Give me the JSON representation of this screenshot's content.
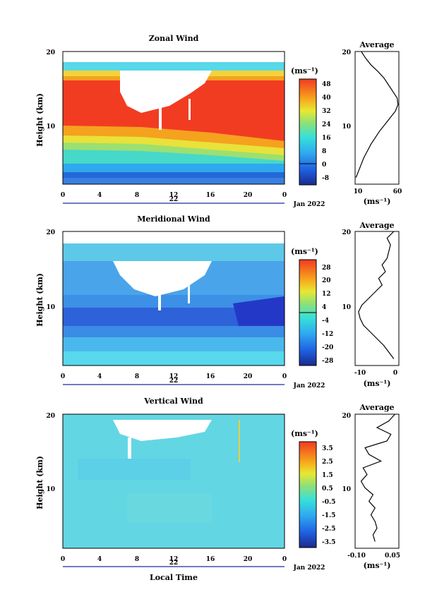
{
  "chart_data": [
    {
      "type": "heatmap",
      "title": "Zonal Wind",
      "ylabel": "Height (km)",
      "ylim": [
        0,
        20
      ],
      "y_ticks": [
        "10",
        "20"
      ],
      "xlim": [
        0,
        24
      ],
      "x_ticks": [
        "0",
        "4",
        "8",
        "12",
        "16",
        "20",
        "0"
      ],
      "date_label": "22",
      "month_label": "Jan 2022",
      "colorbar": {
        "unit": "(ms⁻¹)",
        "range": [
          -12,
          52
        ],
        "ticks": [
          "48",
          "40",
          "32",
          "24",
          "16",
          "8",
          "0",
          "-8"
        ],
        "contour_level": "0"
      },
      "profile": {
        "title": "Average",
        "xlim": [
          10,
          60
        ],
        "x_ticks": [
          "10",
          "60"
        ],
        "xlabel": "(ms⁻¹)",
        "y_ticks": [
          "10",
          "20"
        ],
        "heights": [
          1,
          2,
          3,
          4,
          5,
          6,
          7,
          8,
          9,
          10,
          11,
          12,
          13,
          14,
          15,
          16,
          17,
          18,
          19,
          20
        ],
        "values": [
          11,
          14,
          17,
          20,
          24,
          28,
          33,
          38,
          44,
          50,
          56,
          59,
          58,
          53,
          48,
          43,
          36,
          28,
          22,
          17
        ]
      }
    },
    {
      "type": "heatmap",
      "title": "Meridional Wind",
      "ylabel": "Height (km)",
      "ylim": [
        0,
        20
      ],
      "y_ticks": [
        "10",
        "20"
      ],
      "xlim": [
        0,
        24
      ],
      "x_ticks": [
        "0",
        "4",
        "8",
        "12",
        "16",
        "20",
        "0"
      ],
      "date_label": "22",
      "month_label": "Jan 2022",
      "colorbar": {
        "unit": "(ms⁻¹)",
        "range": [
          -32,
          32
        ],
        "ticks": [
          "28",
          "20",
          "12",
          "4",
          "-4",
          "-12",
          "-20",
          "-28"
        ],
        "contour_level": "0"
      },
      "profile": {
        "title": "Average",
        "xlim": [
          -12,
          1
        ],
        "x_ticks": [
          "-10",
          "0"
        ],
        "xlabel": "(ms⁻¹)",
        "y_ticks": [
          "10",
          "20"
        ],
        "heights": [
          1,
          2,
          3,
          4,
          5,
          6,
          7,
          8,
          9,
          10,
          11,
          12,
          13,
          14,
          15,
          16,
          17,
          18,
          19,
          20
        ],
        "values": [
          -0.5,
          -2,
          -3.5,
          -5.5,
          -7.5,
          -9.5,
          -10.5,
          -11,
          -10,
          -8,
          -6,
          -4,
          -5,
          -3,
          -4,
          -2.5,
          -2,
          -1.5,
          -2.5,
          -0.5
        ]
      }
    },
    {
      "type": "heatmap",
      "title": "Vertical Wind",
      "ylabel": "Height (km)",
      "ylim": [
        0,
        20
      ],
      "y_ticks": [
        "10",
        "20"
      ],
      "xlim": [
        0,
        24
      ],
      "x_ticks": [
        "0",
        "4",
        "8",
        "12",
        "16",
        "20",
        "0"
      ],
      "date_label": "22",
      "month_label": "Jan 2022",
      "xlabel": "Local Time",
      "colorbar": {
        "unit": "(ms⁻¹)",
        "range": [
          -4,
          4
        ],
        "ticks": [
          "3.5",
          "2.5",
          "1.5",
          "0.5",
          "-0.5",
          "-1.5",
          "-2.5",
          "-3.5"
        ]
      },
      "profile": {
        "title": "Average",
        "xlim": [
          -0.15,
          0.07
        ],
        "x_ticks": [
          "-0.10",
          "0.05"
        ],
        "xlabel": "(ms⁻¹)",
        "y_ticks": [
          "10",
          "20"
        ],
        "heights": [
          1,
          2,
          3,
          4,
          5,
          6,
          7,
          8,
          9,
          10,
          11,
          12,
          13,
          14,
          15,
          16,
          17,
          18,
          19,
          20
        ],
        "values": [
          -0.05,
          -0.06,
          -0.04,
          -0.05,
          -0.07,
          -0.05,
          -0.08,
          -0.06,
          -0.1,
          -0.12,
          -0.09,
          -0.11,
          -0.02,
          -0.08,
          -0.1,
          0.01,
          0.03,
          -0.04,
          0.02,
          0.05
        ]
      }
    }
  ]
}
